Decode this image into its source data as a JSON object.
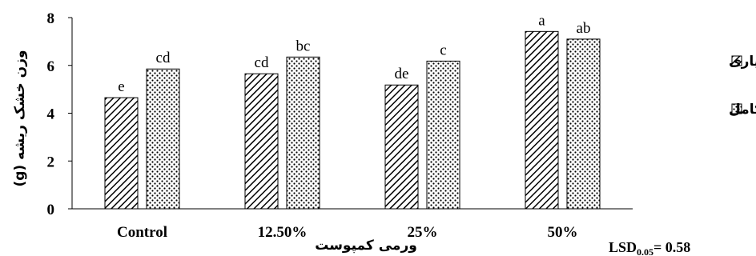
{
  "chart_data": {
    "type": "bar",
    "categories": [
      "Control",
      "12.50%",
      "25%",
      "50%"
    ],
    "series": [
      {
        "name": "قطع آبیاری",
        "pattern": "hatch",
        "values": [
          4.65,
          5.65,
          5.18,
          7.42
        ],
        "labels": [
          "e",
          "cd",
          "de",
          "a"
        ]
      },
      {
        "name": "آبیاری کامل",
        "pattern": "dots",
        "values": [
          5.85,
          6.35,
          6.18,
          7.1
        ],
        "labels": [
          "cd",
          "bc",
          "c",
          "ab"
        ]
      }
    ],
    "ylim": [
      0,
      8
    ],
    "yticks": [
      0,
      2,
      4,
      6,
      8
    ],
    "xlabel": "ورمی کمپوست",
    "ylabel": "وزن خشک ریشه (g)",
    "legend_position": "right",
    "grid": false,
    "annotation": {
      "main": "LSD",
      "sub": "0.05",
      "rest": "= 0.58"
    }
  }
}
